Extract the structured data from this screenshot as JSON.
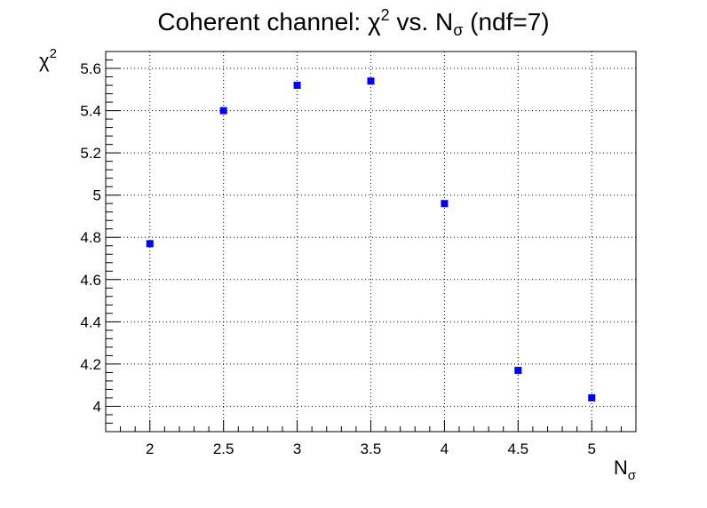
{
  "chart_data": {
    "type": "scatter",
    "title": {
      "main": "Coherent channel: ",
      "chi": "χ",
      "sup": "2",
      "vs": " vs. N",
      "sub": "σ",
      "tail": " (ndf=7)"
    },
    "xlabel": {
      "main": "N",
      "sub": "σ"
    },
    "ylabel": {
      "main": "χ",
      "sup": "2"
    },
    "xlim": [
      1.7,
      5.3
    ],
    "ylim": [
      3.88,
      5.68
    ],
    "grid": true,
    "marker_color": "#0000ff",
    "x_ticks": [
      2,
      2.5,
      3,
      3.5,
      4,
      4.5,
      5
    ],
    "x_tick_labels": [
      "2",
      "2.5",
      "3",
      "3.5",
      "4",
      "4.5",
      "5"
    ],
    "y_ticks": [
      4,
      4.2,
      4.4,
      4.6,
      4.8,
      5,
      5.2,
      5.4,
      5.6
    ],
    "y_tick_labels": [
      "4",
      "4.2",
      "4.4",
      "4.6",
      "4.8",
      "5",
      "5.2",
      "5.4",
      "5.6"
    ],
    "points": [
      {
        "x": 2.0,
        "y": 4.77
      },
      {
        "x": 2.5,
        "y": 5.4
      },
      {
        "x": 3.0,
        "y": 5.52
      },
      {
        "x": 3.5,
        "y": 5.54
      },
      {
        "x": 4.0,
        "y": 4.96
      },
      {
        "x": 4.5,
        "y": 4.17
      },
      {
        "x": 5.0,
        "y": 4.04
      }
    ]
  }
}
